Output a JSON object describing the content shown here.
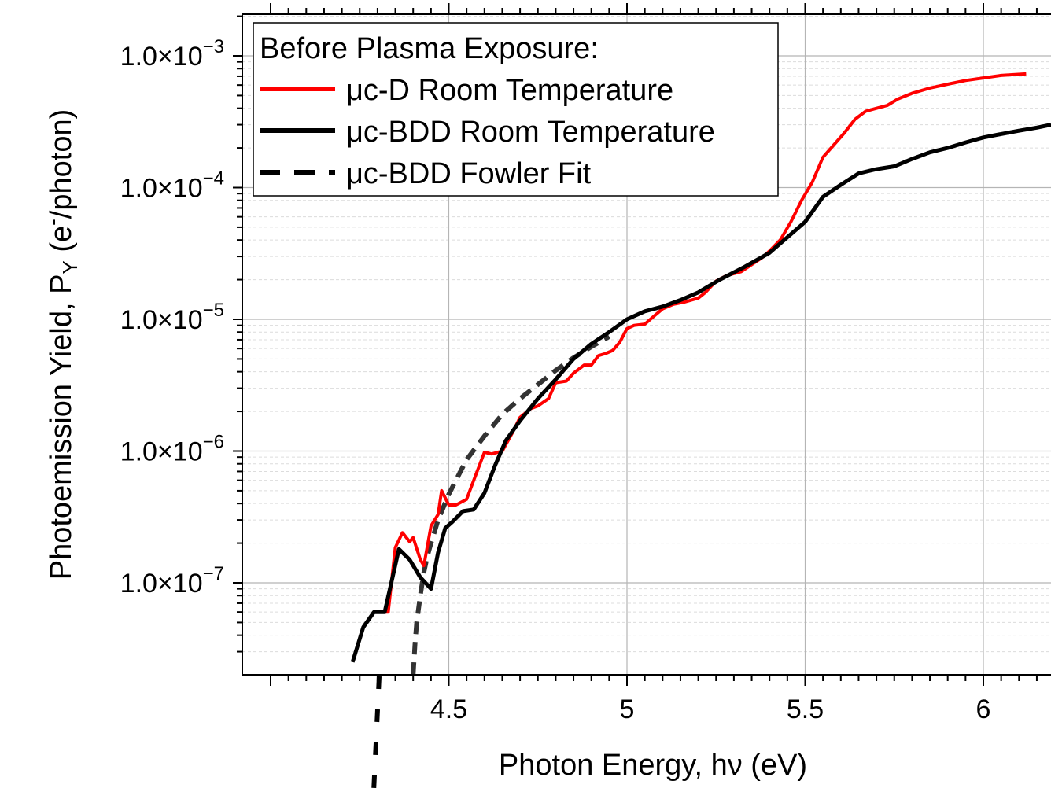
{
  "chart_data": {
    "type": "line",
    "xlabel": "Photon Energy, hν (eV)",
    "ylabel": {
      "prefix": "Photoemission Yield, P",
      "subscript": "Y",
      "mid": " (e",
      "superscript": "-",
      "suffix": "/photon)"
    },
    "xlim": [
      4.0,
      6.19
    ],
    "ylim": [
      3e-08,
      0.002
    ],
    "yscale": "log",
    "grid": true,
    "legend_position": "top-left",
    "x_ticks": [
      {
        "value": 4.5,
        "label": "4.5"
      },
      {
        "value": 5,
        "label": "5"
      },
      {
        "value": 5.5,
        "label": "5.5"
      },
      {
        "value": 6,
        "label": "6"
      }
    ],
    "y_ticks": [
      {
        "value": 0.001,
        "mantissa": "1.0×10",
        "exponent": "−3"
      },
      {
        "value": 0.0001,
        "mantissa": "1.0×10",
        "exponent": "−4"
      },
      {
        "value": 1e-05,
        "mantissa": "1.0×10",
        "exponent": "−5"
      },
      {
        "value": 1e-06,
        "mantissa": "1.0×10",
        "exponent": "−6"
      },
      {
        "value": 1e-07,
        "mantissa": "1.0×10",
        "exponent": "−7"
      }
    ],
    "legend_title": "Before Plasma Exposure:",
    "series": [
      {
        "name": "μc-D Room Temperature",
        "color": "#ff0000",
        "style": "solid",
        "x": [
          4.3,
          4.33,
          4.35,
          4.37,
          4.39,
          4.4,
          4.42,
          4.43,
          4.45,
          4.47,
          4.48,
          4.5,
          4.52,
          4.55,
          4.57,
          4.6,
          4.62,
          4.65,
          4.68,
          4.7,
          4.73,
          4.75,
          4.78,
          4.8,
          4.83,
          4.85,
          4.88,
          4.9,
          4.92,
          4.94,
          4.96,
          4.98,
          5.0,
          5.02,
          5.05,
          5.08,
          5.1,
          5.13,
          5.16,
          5.2,
          5.22,
          5.25,
          5.28,
          5.32,
          5.35,
          5.38,
          5.4,
          5.43,
          5.46,
          5.49,
          5.52,
          5.55,
          5.58,
          5.61,
          5.64,
          5.67,
          5.7,
          5.73,
          5.76,
          5.8,
          5.85,
          5.9,
          5.95,
          6.0,
          6.05,
          6.12
        ],
        "y": [
          6e-08,
          6e-08,
          1.85e-07,
          2.4e-07,
          2.05e-07,
          2.2e-07,
          1.5e-07,
          1.35e-07,
          2.7e-07,
          3.3e-07,
          5e-07,
          3.9e-07,
          3.9e-07,
          4.3e-07,
          6e-07,
          9.8e-07,
          9.5e-07,
          1e-06,
          1.4e-06,
          1.8e-06,
          2.1e-06,
          2.2e-06,
          2.5e-06,
          3.3e-06,
          3.4e-06,
          3.9e-06,
          4.5e-06,
          4.5e-06,
          5.3e-06,
          5.5e-06,
          5.8e-06,
          6.7e-06,
          8.5e-06,
          9e-06,
          9.2e-06,
          1.08e-05,
          1.2e-05,
          1.3e-05,
          1.35e-05,
          1.45e-05,
          1.6e-05,
          1.95e-05,
          2.15e-05,
          2.3e-05,
          2.6e-05,
          2.95e-05,
          3.3e-05,
          4e-05,
          5.5e-05,
          8e-05,
          0.00011,
          0.00017,
          0.00021,
          0.00026,
          0.00033,
          0.00038,
          0.0004,
          0.00042,
          0.00047,
          0.00052,
          0.00057,
          0.00061,
          0.00065,
          0.00068,
          0.00071,
          0.00073
        ]
      },
      {
        "name": "μc-BDD Room Temperature",
        "color": "#000000",
        "style": "solid",
        "x": [
          4.23,
          4.26,
          4.29,
          4.32,
          4.36,
          4.39,
          4.42,
          4.45,
          4.47,
          4.49,
          4.51,
          4.54,
          4.57,
          4.6,
          4.63,
          4.66,
          4.7,
          4.75,
          4.8,
          4.85,
          4.9,
          4.95,
          5.0,
          5.05,
          5.1,
          5.15,
          5.2,
          5.26,
          5.33,
          5.4,
          5.45,
          5.5,
          5.55,
          5.6,
          5.65,
          5.7,
          5.75,
          5.8,
          5.85,
          5.9,
          5.95,
          6.0,
          6.05,
          6.1,
          6.15,
          6.19
        ],
        "y": [
          2.5e-08,
          4.6e-08,
          6e-08,
          6e-08,
          1.8e-07,
          1.5e-07,
          1.1e-07,
          9e-08,
          1.7e-07,
          2.6e-07,
          2.9e-07,
          3.5e-07,
          3.6e-07,
          4.8e-07,
          7.8e-07,
          1.2e-06,
          1.7e-06,
          2.5e-06,
          3.5e-06,
          5e-06,
          6.5e-06,
          8e-06,
          1e-05,
          1.15e-05,
          1.25e-05,
          1.4e-05,
          1.6e-05,
          2e-05,
          2.5e-05,
          3.2e-05,
          4.2e-05,
          5.5e-05,
          8.5e-05,
          0.000105,
          0.000128,
          0.000138,
          0.000145,
          0.000165,
          0.000185,
          0.0002,
          0.00022,
          0.00024,
          0.000255,
          0.00027,
          0.000285,
          0.0003
        ]
      },
      {
        "name": "μc-BDD Fowler Fit",
        "color": "#000000",
        "style": "dashed",
        "x": [
          4.4,
          4.405,
          4.41,
          4.42,
          4.43,
          4.44,
          4.45,
          4.47,
          4.5,
          4.55,
          4.6,
          4.65,
          4.7,
          4.75,
          4.8,
          4.85,
          4.9,
          4.95
        ],
        "y": [
          2e-08,
          3.4e-08,
          5e-08,
          8e-08,
          1.2e-07,
          1.6e-07,
          2e-07,
          3e-07,
          4.7e-07,
          8.6e-07,
          1.3e-06,
          1.9e-06,
          2.5e-06,
          3.2e-06,
          4.1e-06,
          5.1e-06,
          6.2e-06,
          7.4e-06
        ]
      }
    ]
  }
}
